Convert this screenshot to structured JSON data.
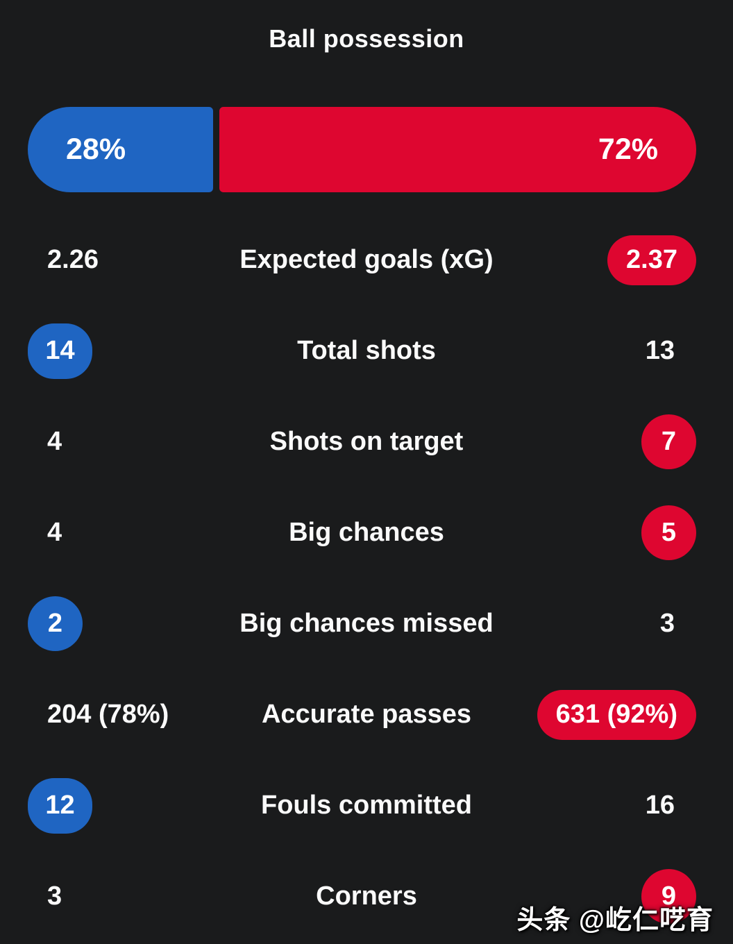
{
  "title": "Ball possession",
  "colors": {
    "home": "#1f65c2",
    "away": "#de0630",
    "background": "#1a1b1c",
    "text": "#fafafa"
  },
  "possession_bar": {
    "home_value": "28%",
    "away_value": "72%",
    "home_pct": 28,
    "away_pct": 72
  },
  "stats": [
    {
      "label": "Expected goals (xG)",
      "home": "2.26",
      "away": "2.37",
      "home_style": "plain",
      "away_style": "pill-red"
    },
    {
      "label": "Total shots",
      "home": "14",
      "away": "13",
      "home_style": "badge-blue",
      "away_style": "plain"
    },
    {
      "label": "Shots on target",
      "home": "4",
      "away": "7",
      "home_style": "plain",
      "away_style": "circle-red"
    },
    {
      "label": "Big chances",
      "home": "4",
      "away": "5",
      "home_style": "plain",
      "away_style": "circle-red"
    },
    {
      "label": "Big chances missed",
      "home": "2",
      "away": "3",
      "home_style": "circle-blue",
      "away_style": "plain"
    },
    {
      "label": "Accurate passes",
      "home": "204 (78%)",
      "away": "631 (92%)",
      "home_style": "plain",
      "away_style": "pill-red"
    },
    {
      "label": "Fouls committed",
      "home": "12",
      "away": "16",
      "home_style": "badge-blue",
      "away_style": "plain"
    },
    {
      "label": "Corners",
      "home": "3",
      "away": "9",
      "home_style": "plain",
      "away_style": "circle-red"
    }
  ],
  "watermark": "头条 @屹仁呓育"
}
